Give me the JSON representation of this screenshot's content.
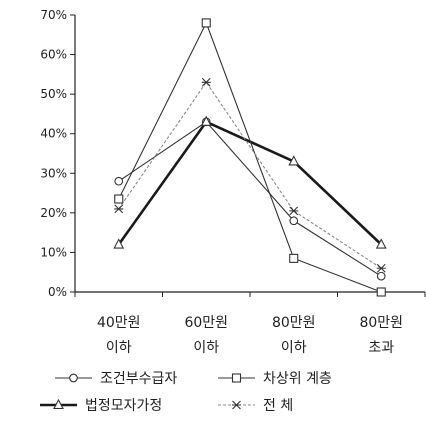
{
  "chart_data": {
    "type": "line",
    "categories": [
      "40만원\n이하",
      "60만원\n이하",
      "80만원\n이하",
      "80만원\n초과"
    ],
    "ylim": [
      0,
      70
    ],
    "y_ticks": [
      0,
      10,
      20,
      30,
      40,
      50,
      60,
      70
    ],
    "y_tick_format": "{v}%",
    "grid": false,
    "legend_position": "bottom",
    "series": [
      {
        "name": "조건부수급자",
        "marker": "circle",
        "weight": "thin",
        "dash": false,
        "values": [
          28,
          43,
          18,
          4
        ]
      },
      {
        "name": "차상위 계층",
        "marker": "square",
        "weight": "thin",
        "dash": false,
        "values": [
          23.5,
          68,
          8.5,
          0
        ]
      },
      {
        "name": "법정모자가정",
        "marker": "triangle",
        "weight": "thick",
        "dash": false,
        "values": [
          12,
          43,
          33,
          12
        ]
      },
      {
        "name": "전  체",
        "marker": "star",
        "weight": "thin",
        "dash": true,
        "values": [
          21,
          53,
          20.5,
          6
        ]
      }
    ]
  }
}
